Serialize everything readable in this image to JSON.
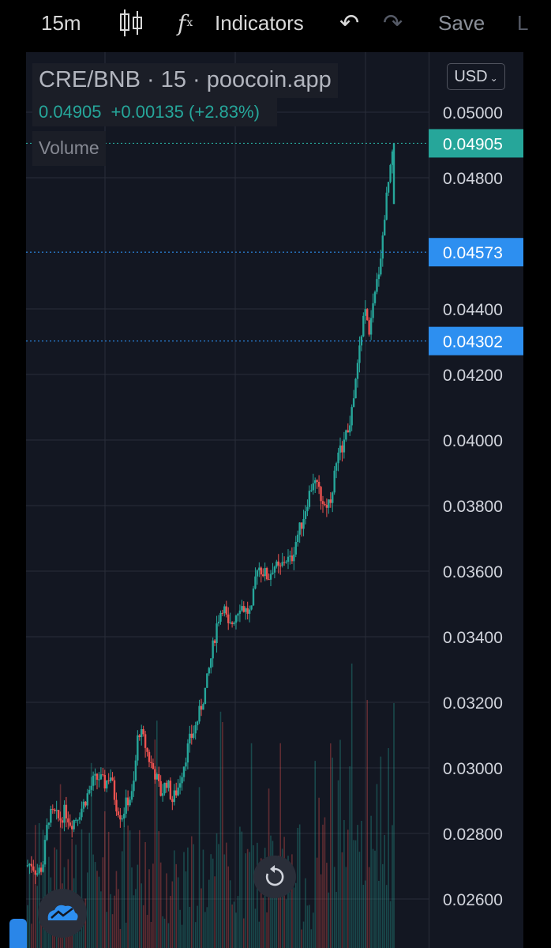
{
  "toolbar": {
    "interval": "15m",
    "indicators": "Indicators",
    "save": "Save",
    "fx": "f",
    "fx_sub": "x",
    "edge": "L",
    "undo_glyph": "↶",
    "redo_glyph": "↷",
    "candle_icon": "candlestick-icon"
  },
  "legend": {
    "title": "CRE/BNB · 15 · poocoin.app",
    "last": "0.04905",
    "change": "+0.00135 (+2.83%)",
    "volume": "Volume"
  },
  "currency": {
    "label": "USD",
    "chevron": "⌄"
  },
  "colors": {
    "up": "#26a69a",
    "down": "#ef5350",
    "price_marker": "#26a69a",
    "level_marker": "#2d8ff0",
    "grid": "#2a2e39",
    "panel": "#131722"
  },
  "chart_data": {
    "type": "candlestick",
    "title": "CRE/BNB · 15 · poocoin.app",
    "ylim": [
      0.0255,
      0.051
    ],
    "y_ticks": [
      "0.05000",
      "0.04800",
      "0.04400",
      "0.04200",
      "0.04000",
      "0.03800",
      "0.03600",
      "0.03400",
      "0.03200",
      "0.03000",
      "0.02800",
      "0.02600"
    ],
    "price_lines": [
      {
        "label": "0.04905",
        "value": 0.04905,
        "kind": "last"
      },
      {
        "label": "0.04573",
        "value": 0.04573,
        "kind": "level"
      },
      {
        "label": "0.04302",
        "value": 0.04302,
        "kind": "level"
      }
    ],
    "close_path": [
      0.027,
      0.0271,
      0.0268,
      0.027,
      0.0285,
      0.0286,
      0.0284,
      0.0287,
      0.0283,
      0.0285,
      0.0288,
      0.0292,
      0.0296,
      0.0297,
      0.0295,
      0.0298,
      0.0289,
      0.0285,
      0.029,
      0.0292,
      0.0312,
      0.0308,
      0.0302,
      0.0298,
      0.0292,
      0.0296,
      0.029,
      0.0294,
      0.0301,
      0.0308,
      0.0312,
      0.0318,
      0.0325,
      0.0335,
      0.0345,
      0.035,
      0.0342,
      0.0346,
      0.035,
      0.0348,
      0.0347,
      0.0362,
      0.036,
      0.0358,
      0.0362,
      0.036,
      0.0364,
      0.0363,
      0.037,
      0.0375,
      0.0382,
      0.0388,
      0.0384,
      0.038,
      0.0382,
      0.0392,
      0.0398,
      0.0402,
      0.041,
      0.0425,
      0.044,
      0.0433,
      0.0445,
      0.0457,
      0.0475,
      0.049
    ]
  }
}
